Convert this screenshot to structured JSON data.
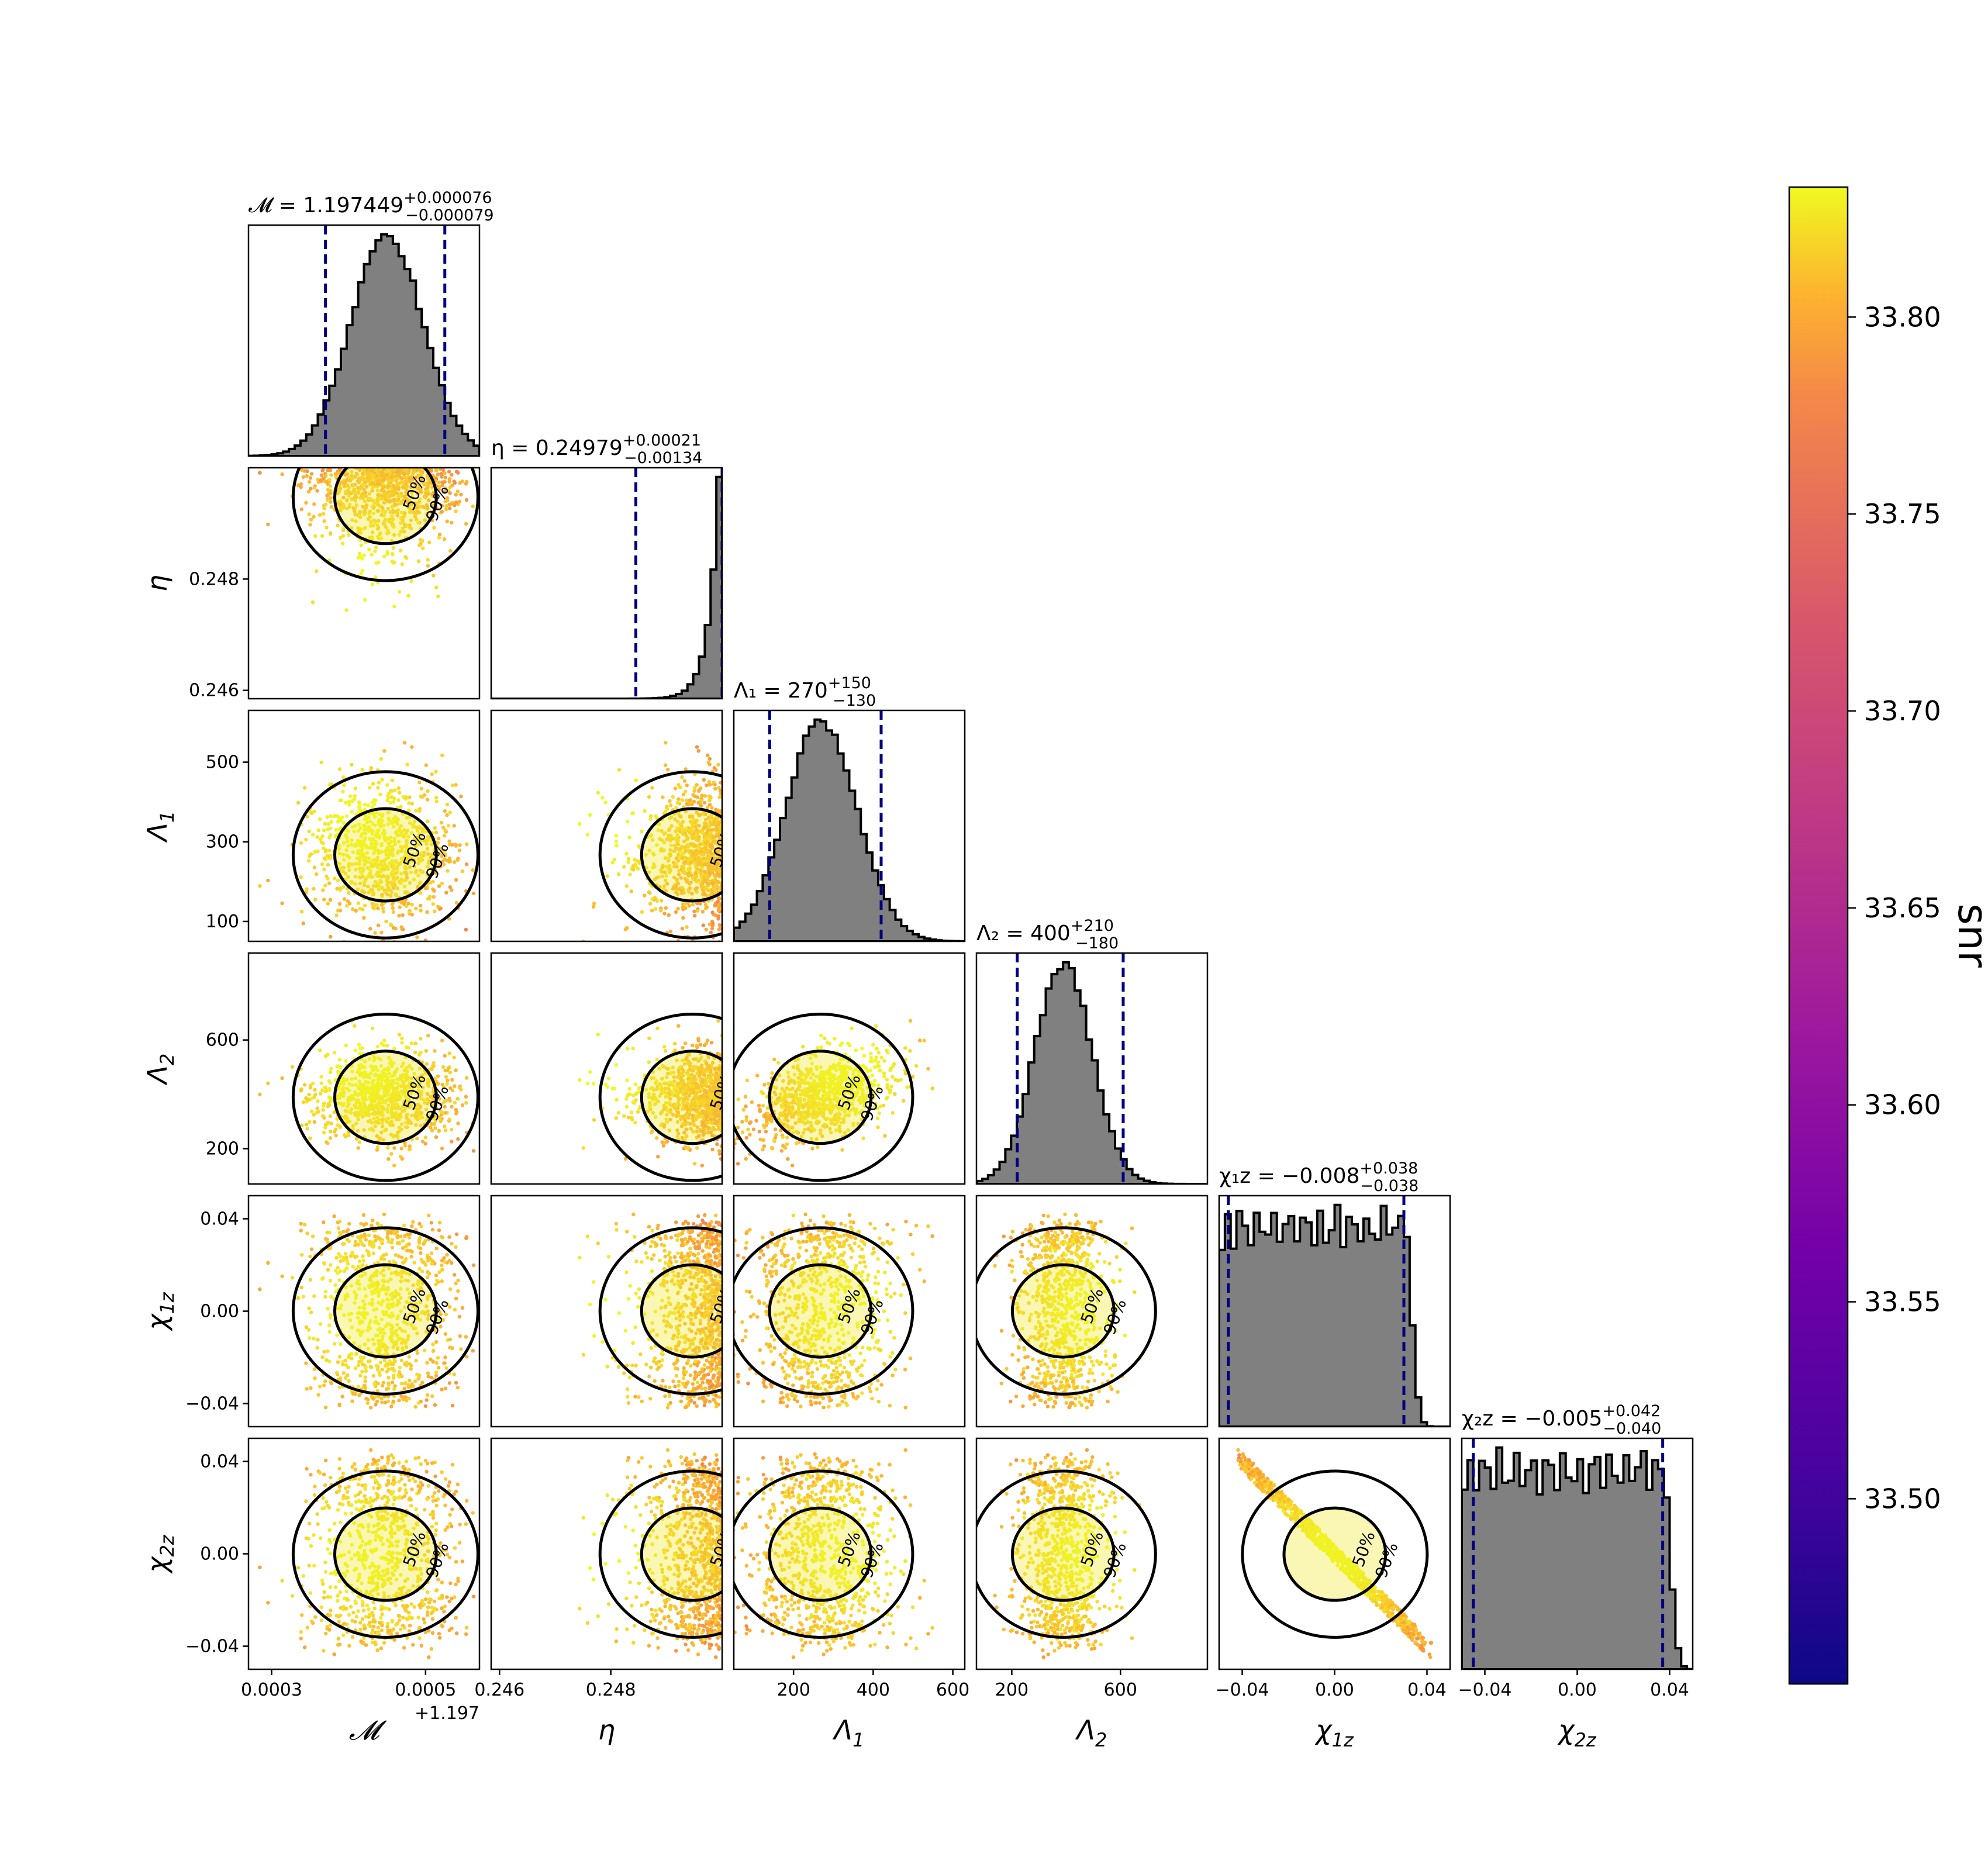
{
  "chart_data": {
    "type": "corner",
    "parameters": [
      {
        "key": "mc",
        "symbol": "𝓜",
        "sub": "",
        "range": [
          1.19727,
          1.19757
        ],
        "ticks": [
          1.1973,
          1.1975
        ],
        "tick_labels": [
          "0.0003",
          "0.0005"
        ],
        "offset_label": "+1.197",
        "median": 1.197449,
        "lower": 1.19737,
        "upper": 1.197525,
        "title": {
          "prefix": "𝓜 = 1.197449",
          "plus": "+0.000076",
          "minus": "−0.000079"
        },
        "hist_peak": 1.19745,
        "hist_sigma": 4.7e-05,
        "hist_shape": "gauss"
      },
      {
        "key": "eta",
        "symbol": "η",
        "sub": "",
        "range": [
          0.24585,
          0.25
        ],
        "ticks": [
          0.246,
          0.248
        ],
        "tick_labels": [
          "0.246",
          "0.248"
        ],
        "median": 0.24979,
        "lower": 0.24845,
        "upper": 0.25,
        "title": {
          "prefix": "η = 0.24979",
          "plus": "+0.00021",
          "minus": "−0.00134"
        },
        "hist_shape": "rising"
      },
      {
        "key": "lambda1",
        "symbol": "Λ",
        "sub": "1",
        "range": [
          50,
          630
        ],
        "ticks": [
          100,
          300,
          500
        ],
        "tick_labels": [
          "100",
          "300",
          "500"
        ],
        "xticks": [
          200,
          400,
          600
        ],
        "xtick_labels": [
          "200",
          "400",
          "600"
        ],
        "median": 270,
        "lower": 140,
        "upper": 420,
        "title": {
          "prefix": "Λ₁ = 270",
          "plus": "+150",
          "minus": "−130"
        },
        "hist_peak": 270,
        "hist_sigma": 90,
        "hist_shape": "gauss"
      },
      {
        "key": "lambda2",
        "symbol": "Λ",
        "sub": "2",
        "range": [
          70,
          920
        ],
        "ticks": [
          200,
          600
        ],
        "tick_labels": [
          "200",
          "600"
        ],
        "xticks": [
          200,
          600
        ],
        "xtick_labels": [
          "200",
          "600"
        ],
        "median": 400,
        "lower": 220,
        "upper": 610,
        "title": {
          "prefix": "Λ₂ = 400",
          "plus": "+210",
          "minus": "−180"
        },
        "hist_peak": 390,
        "hist_sigma": 105,
        "hist_shape": "gauss"
      },
      {
        "key": "chi1z",
        "symbol": "χ",
        "sub": "1z",
        "range": [
          -0.05,
          0.05
        ],
        "ticks": [
          -0.04,
          0.0,
          0.04
        ],
        "tick_labels": [
          "−0.04",
          "0.00",
          "0.04"
        ],
        "median": -0.008,
        "lower": -0.046,
        "upper": 0.03,
        "title": {
          "prefix": "χ₁z = −0.008",
          "plus": "+0.038",
          "minus": "−0.038"
        },
        "hist_edge": 0.03,
        "hist_shape": "flat"
      },
      {
        "key": "chi2z",
        "symbol": "χ",
        "sub": "2z",
        "range": [
          -0.05,
          0.05
        ],
        "ticks": [
          -0.04,
          0.0,
          0.04
        ],
        "tick_labels": [
          "−0.04",
          "0.00",
          "0.04"
        ],
        "median": -0.005,
        "lower": -0.045,
        "upper": 0.037,
        "title": {
          "prefix": "χ₂z = −0.005",
          "plus": "+0.042",
          "minus": "−0.040"
        },
        "hist_edge": 0.037,
        "hist_shape": "flat"
      }
    ],
    "contour_levels": [
      "50%",
      "90%"
    ],
    "colorbar": {
      "label": "snr",
      "range": [
        33.453,
        33.833
      ],
      "ticks": [
        33.5,
        33.55,
        33.6,
        33.65,
        33.7,
        33.75,
        33.8
      ],
      "tick_labels": [
        "33.50",
        "33.55",
        "33.60",
        "33.65",
        "33.70",
        "33.75",
        "33.80"
      ],
      "colormap": "plasma"
    },
    "colors": {
      "hist_fill": "#808080",
      "quantile_line": "#00007f",
      "contour": "#000000"
    }
  }
}
